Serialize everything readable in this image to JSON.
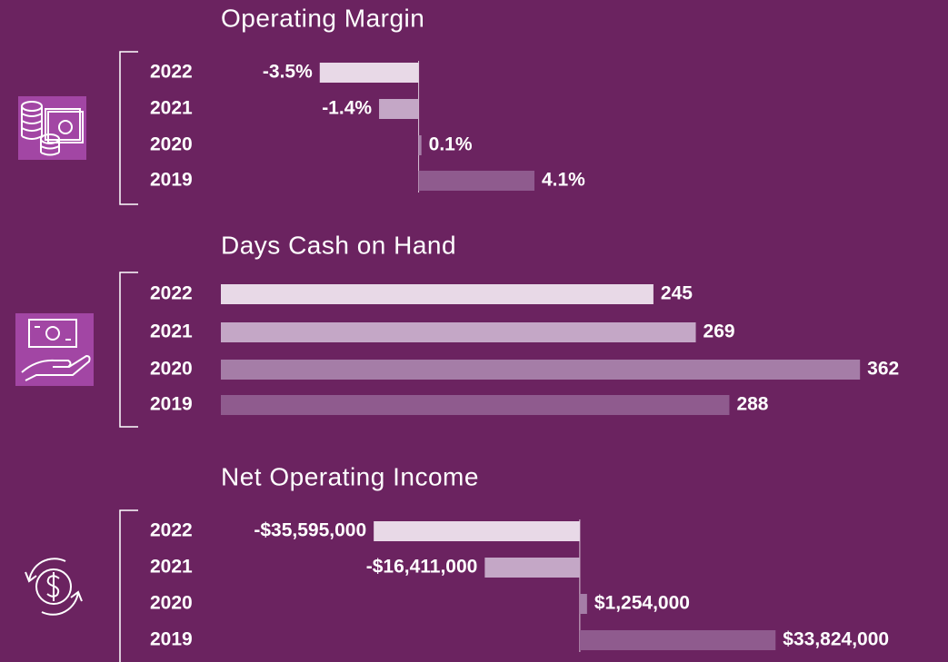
{
  "chart_data": [
    {
      "type": "bar",
      "orientation": "horizontal",
      "title": "Operating Margin",
      "categories": [
        "2022",
        "2021",
        "2020",
        "2019"
      ],
      "values": [
        -3.5,
        -1.4,
        0.1,
        4.1
      ],
      "value_labels": [
        "-3.5%",
        "-1.4%",
        "0.1%",
        "4.1%"
      ],
      "colors": [
        "#e8d9e7",
        "#c4a7c6",
        "#a57da7",
        "#8f5b8e"
      ],
      "xlim": [
        -7,
        18
      ]
    },
    {
      "type": "bar",
      "orientation": "horizontal",
      "title": "Days Cash on Hand",
      "categories": [
        "2022",
        "2021",
        "2020",
        "2019"
      ],
      "values": [
        245,
        269,
        362,
        288
      ],
      "colors": [
        "#e8d9e7",
        "#c4a7c6",
        "#a57da7",
        "#8f5b8e"
      ],
      "xlim": [
        0,
        400
      ]
    },
    {
      "type": "bar",
      "orientation": "horizontal",
      "title": "Net Operating Income",
      "categories": [
        "2022",
        "2021",
        "2020",
        "2019"
      ],
      "values": [
        -35595000,
        -16411000,
        1254000,
        33824000
      ],
      "value_labels": [
        "-$35,595,000",
        "-$16,411,000",
        "$1,254,000",
        "$33,824,000"
      ],
      "colors": [
        "#e8d9e7",
        "#c4a7c6",
        "#a57da7",
        "#8f5b8e"
      ],
      "xlim": [
        -62000000,
        60000000
      ]
    }
  ]
}
